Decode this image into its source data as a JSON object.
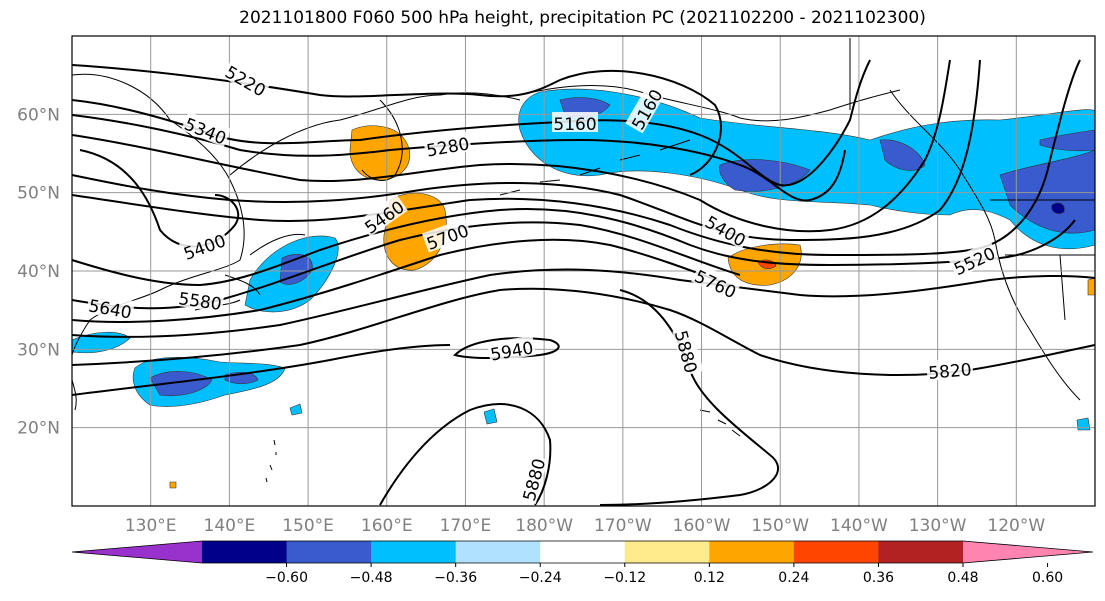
{
  "title": "2021101800 F060 500 hPa height, precipitation PC (2021102200 - 2021102300)",
  "map": {
    "projection": "equirectangular",
    "lon_range": [
      120,
      250
    ],
    "lat_range": [
      10,
      70
    ],
    "lat_labels": [
      "20°N",
      "30°N",
      "40°N",
      "50°N",
      "60°N"
    ],
    "lon_labels": [
      "130°E",
      "140°E",
      "150°E",
      "160°E",
      "170°E",
      "180°W",
      "170°W",
      "160°W",
      "150°W",
      "140°W",
      "130°W",
      "120°W"
    ],
    "grid": true,
    "coastlines": true
  },
  "contours": {
    "field": "500 hPa geopotential height",
    "labels": [
      "5220",
      "5340",
      "5160",
      "5280",
      "5400",
      "5460",
      "5700",
      "5580",
      "5640",
      "5400",
      "5760",
      "5520",
      "5880",
      "5940",
      "5820",
      "5880",
      "5160"
    ]
  },
  "colorbar": {
    "extend": "both",
    "ticks": [
      "−0.60",
      "−0.48",
      "−0.36",
      "−0.24",
      "−0.12",
      "0.12",
      "0.24",
      "0.36",
      "0.48",
      "0.60"
    ],
    "colors": [
      "#9932cc",
      "#00008b",
      "#3a5bcd",
      "#00bfff",
      "#b0e2ff",
      "#ffffff",
      "#ffeb8b",
      "#ffa500",
      "#ff4500",
      "#b22222",
      "#ff85b0"
    ]
  }
}
